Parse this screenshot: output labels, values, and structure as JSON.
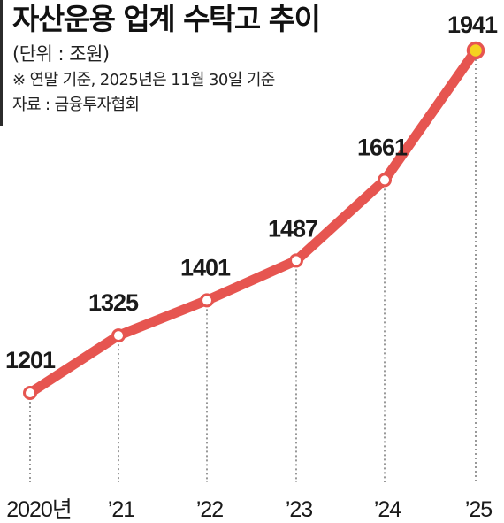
{
  "header": {
    "title": "자산운용 업계 수탁고 추이",
    "unit": "(단위 : 조원)",
    "note": "※ 연말 기준, 2025년은 11월 30일 기준",
    "source": "자료 : 금융투자협회"
  },
  "colors": {
    "line": "#e65550",
    "marker_fill": "#ffffff",
    "highlight_fill": "#f5d21f",
    "guide": "#555555"
  },
  "chart_data": {
    "type": "line",
    "title": "자산운용 업계 수탁고 추이",
    "x": [
      "2020년",
      "’21",
      "’22",
      "’23",
      "’24",
      "’25"
    ],
    "values": [
      1201,
      1325,
      1401,
      1487,
      1661,
      1941
    ],
    "data_labels": [
      "1201",
      "1325",
      "1401",
      "1487",
      "1661",
      "1941"
    ],
    "highlight_last_point": true,
    "grid": false,
    "legend": false
  }
}
